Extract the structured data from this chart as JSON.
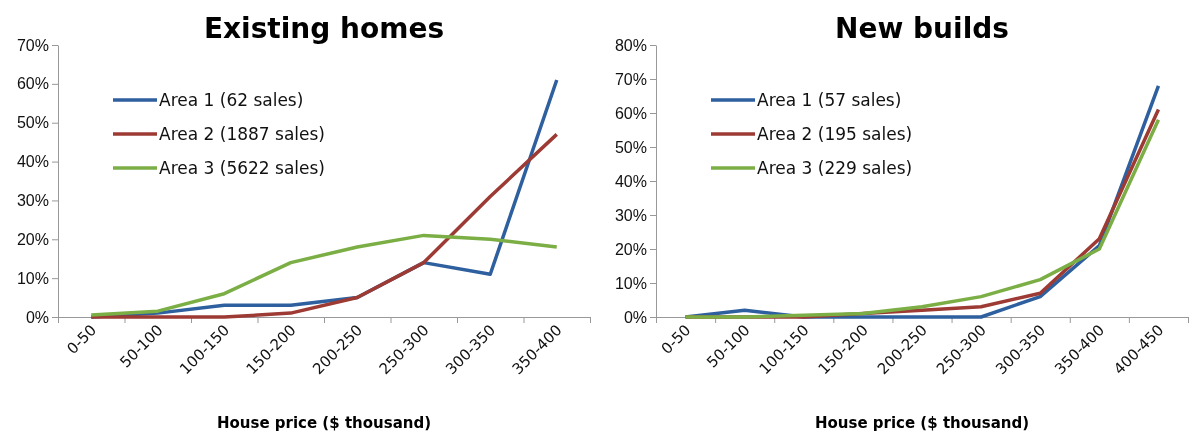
{
  "chart_data": [
    {
      "type": "line",
      "title": "Existing homes",
      "xlabel": "House price ($ thousand)",
      "categories": [
        "0-50",
        "50-100",
        "100-150",
        "150-200",
        "200-250",
        "250-300",
        "300-350",
        "350-400"
      ],
      "series": [
        {
          "name": "Area 1 (62 sales)",
          "color": "#2e5f9e",
          "values": [
            0,
            1,
            3,
            3,
            5,
            14,
            11,
            61
          ]
        },
        {
          "name": "Area 2 (1887 sales)",
          "color": "#9c3a33",
          "values": [
            0,
            0,
            0,
            1,
            5,
            14,
            31,
            47
          ]
        },
        {
          "name": "Area 3 (5622 sales)",
          "color": "#7bae45",
          "values": [
            0.5,
            1.5,
            6,
            14,
            18,
            21,
            20,
            18
          ]
        }
      ],
      "ylim": [
        0,
        70
      ],
      "yticks": [
        {
          "value": 0,
          "label": "0%"
        },
        {
          "value": 10,
          "label": "10%"
        },
        {
          "value": 20,
          "label": "20%"
        },
        {
          "value": 30,
          "label": "30%"
        },
        {
          "value": 40,
          "label": "40%"
        },
        {
          "value": 50,
          "label": "50%"
        },
        {
          "value": 60,
          "label": "60%"
        },
        {
          "value": 70,
          "label": "70%"
        }
      ],
      "grid": false,
      "legend": "top left",
      "marker": "none",
      "line_style": "solid"
    },
    {
      "type": "line",
      "title": "New builds",
      "xlabel": "House price ($ thousand)",
      "categories": [
        "0-50",
        "50-100",
        "100-150",
        "150-200",
        "200-250",
        "250-300",
        "300-350",
        "350-400",
        "400-450"
      ],
      "series": [
        {
          "name": "Area 1 (57 sales)",
          "color": "#2e5f9e",
          "values": [
            0,
            2,
            0,
            0,
            0,
            0,
            6,
            21,
            68
          ]
        },
        {
          "name": "Area 2 (195 sales)",
          "color": "#9c3a33",
          "values": [
            0,
            0,
            0,
            1,
            2,
            3,
            7,
            23,
            61
          ]
        },
        {
          "name": "Area 3 (229 sales)",
          "color": "#7bae45",
          "values": [
            0,
            0,
            0.5,
            1,
            3,
            6,
            11,
            20,
            58
          ]
        }
      ],
      "ylim": [
        0,
        80
      ],
      "yticks": [
        {
          "value": 0,
          "label": "0%"
        },
        {
          "value": 10,
          "label": "10%"
        },
        {
          "value": 20,
          "label": "20%"
        },
        {
          "value": 30,
          "label": "30%"
        },
        {
          "value": 40,
          "label": "40%"
        },
        {
          "value": 50,
          "label": "50%"
        },
        {
          "value": 60,
          "label": "60%"
        },
        {
          "value": 70,
          "label": "70%"
        },
        {
          "value": 80,
          "label": "80%"
        }
      ],
      "grid": false,
      "legend": "top left",
      "marker": "none",
      "line_style": "solid"
    }
  ]
}
